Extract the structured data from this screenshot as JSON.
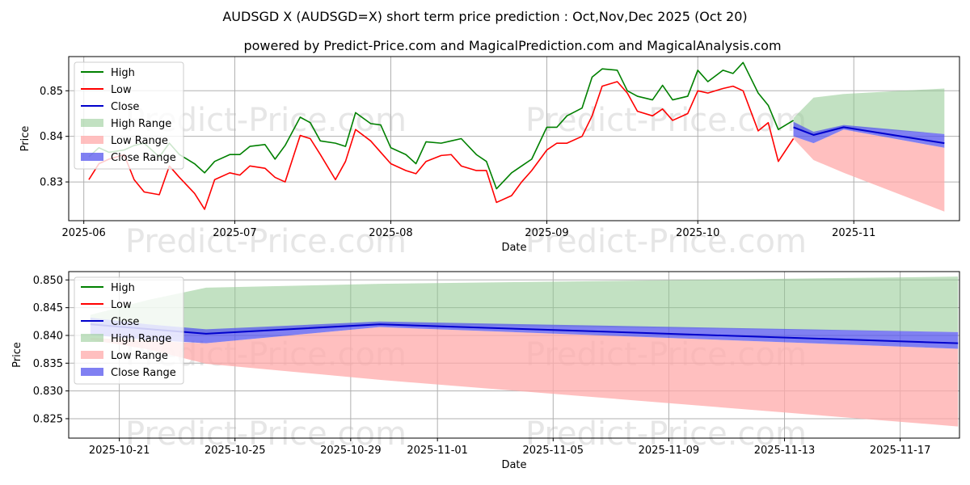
{
  "header": {
    "title": "AUDSGD X (AUDSGD=X) short term price prediction : Oct,Nov,Dec 2025 (Oct 20)",
    "subtitle": "powered by Predict-Price.com and MagicalPrediction.com and MagicalAnalysis.com"
  },
  "watermarks": [
    "Predict-Price.com",
    "Predict-Price.com",
    "Predict-Price.com",
    "Predict-Price.com",
    "Predict-Price.com",
    "Predict-Price.com",
    "Predict-Price.com",
    "Predict-Price.com"
  ],
  "colors": {
    "high": "#008000",
    "low": "#ff0000",
    "close": "#0000cc",
    "high_range": "#8fc98f",
    "low_range": "#ffaaaa",
    "close_range": "#5555ee",
    "grid": "#b0b0b0",
    "watermark": "#e6e6e6"
  },
  "chart_data": [
    {
      "type": "line",
      "title": "",
      "xlabel": "Date",
      "ylabel": "Price",
      "xlim": [
        "2025-05-29",
        "2025-11-22"
      ],
      "ylim": [
        0.8215,
        0.8575
      ],
      "x_ticks": [
        {
          "date": "2025-06-01",
          "label": "2025-06"
        },
        {
          "date": "2025-07-01",
          "label": "2025-07"
        },
        {
          "date": "2025-08-01",
          "label": "2025-08"
        },
        {
          "date": "2025-09-01",
          "label": "2025-09"
        },
        {
          "date": "2025-10-01",
          "label": "2025-10"
        },
        {
          "date": "2025-11-01",
          "label": "2025-11"
        }
      ],
      "y_ticks": [
        0.83,
        0.84,
        0.85
      ],
      "y_tick_labels": [
        "0.83",
        "0.84",
        "0.85"
      ],
      "legend": {
        "position": "upper-left",
        "entries": [
          "High",
          "Low",
          "Close",
          "High Range",
          "Low Range",
          "Close Range"
        ]
      },
      "series": [
        {
          "name": "High",
          "dates": [
            "2025-06-02",
            "2025-06-04",
            "2025-06-06",
            "2025-06-09",
            "2025-06-11",
            "2025-06-13",
            "2025-06-16",
            "2025-06-18",
            "2025-06-20",
            "2025-06-23",
            "2025-06-25",
            "2025-06-27",
            "2025-06-30",
            "2025-07-02",
            "2025-07-04",
            "2025-07-07",
            "2025-07-09",
            "2025-07-11",
            "2025-07-14",
            "2025-07-16",
            "2025-07-18",
            "2025-07-21",
            "2025-07-23",
            "2025-07-25",
            "2025-07-28",
            "2025-07-30",
            "2025-08-01",
            "2025-08-04",
            "2025-08-06",
            "2025-08-08",
            "2025-08-11",
            "2025-08-13",
            "2025-08-15",
            "2025-08-18",
            "2025-08-20",
            "2025-08-22",
            "2025-08-25",
            "2025-08-27",
            "2025-08-29",
            "2025-09-01",
            "2025-09-03",
            "2025-09-05",
            "2025-09-08",
            "2025-09-10",
            "2025-09-12",
            "2025-09-15",
            "2025-09-17",
            "2025-09-19",
            "2025-09-22",
            "2025-09-24",
            "2025-09-26",
            "2025-09-29",
            "2025-10-01",
            "2025-10-03",
            "2025-10-06",
            "2025-10-08",
            "2025-10-10",
            "2025-10-13",
            "2025-10-15",
            "2025-10-17",
            "2025-10-20"
          ],
          "values": [
            0.8355,
            0.8375,
            0.8365,
            0.837,
            0.838,
            0.8385,
            0.8355,
            0.8385,
            0.836,
            0.834,
            0.832,
            0.8345,
            0.836,
            0.836,
            0.8378,
            0.8382,
            0.835,
            0.838,
            0.8442,
            0.843,
            0.839,
            0.8385,
            0.8378,
            0.8452,
            0.8428,
            0.8425,
            0.8375,
            0.836,
            0.834,
            0.8388,
            0.8385,
            0.839,
            0.8395,
            0.836,
            0.8345,
            0.8285,
            0.832,
            0.8335,
            0.835,
            0.842,
            0.842,
            0.8445,
            0.8462,
            0.853,
            0.8548,
            0.8545,
            0.85,
            0.8488,
            0.848,
            0.8512,
            0.848,
            0.8488,
            0.8545,
            0.852,
            0.8545,
            0.8538,
            0.8562,
            0.8495,
            0.8468,
            0.8415,
            0.8435
          ]
        },
        {
          "name": "Low",
          "dates": [
            "2025-06-02",
            "2025-06-04",
            "2025-06-06",
            "2025-06-09",
            "2025-06-11",
            "2025-06-13",
            "2025-06-16",
            "2025-06-18",
            "2025-06-20",
            "2025-06-23",
            "2025-06-25",
            "2025-06-27",
            "2025-06-30",
            "2025-07-02",
            "2025-07-04",
            "2025-07-07",
            "2025-07-09",
            "2025-07-11",
            "2025-07-14",
            "2025-07-16",
            "2025-07-18",
            "2025-07-21",
            "2025-07-23",
            "2025-07-25",
            "2025-07-28",
            "2025-07-30",
            "2025-08-01",
            "2025-08-04",
            "2025-08-06",
            "2025-08-08",
            "2025-08-11",
            "2025-08-13",
            "2025-08-15",
            "2025-08-18",
            "2025-08-20",
            "2025-08-22",
            "2025-08-25",
            "2025-08-27",
            "2025-08-29",
            "2025-09-01",
            "2025-09-03",
            "2025-09-05",
            "2025-09-08",
            "2025-09-10",
            "2025-09-12",
            "2025-09-15",
            "2025-09-17",
            "2025-09-19",
            "2025-09-22",
            "2025-09-24",
            "2025-09-26",
            "2025-09-29",
            "2025-10-01",
            "2025-10-03",
            "2025-10-06",
            "2025-10-08",
            "2025-10-10",
            "2025-10-13",
            "2025-10-15",
            "2025-10-17",
            "2025-10-20"
          ],
          "values": [
            0.8305,
            0.834,
            0.835,
            0.836,
            0.8305,
            0.8278,
            0.8272,
            0.8335,
            0.831,
            0.8275,
            0.824,
            0.8305,
            0.832,
            0.8315,
            0.8335,
            0.833,
            0.831,
            0.83,
            0.8402,
            0.8395,
            0.836,
            0.8305,
            0.8345,
            0.8415,
            0.839,
            0.8365,
            0.834,
            0.8325,
            0.8318,
            0.8345,
            0.8358,
            0.836,
            0.8335,
            0.8325,
            0.8325,
            0.8255,
            0.827,
            0.83,
            0.8325,
            0.837,
            0.8385,
            0.8385,
            0.84,
            0.8445,
            0.851,
            0.852,
            0.8495,
            0.8455,
            0.8445,
            0.846,
            0.8435,
            0.845,
            0.85,
            0.8495,
            0.8505,
            0.851,
            0.85,
            0.8412,
            0.843,
            0.8345,
            0.8395
          ]
        },
        {
          "name": "Close",
          "dates": [
            "2025-10-20",
            "2025-10-24",
            "2025-10-30",
            "2025-11-19"
          ],
          "values": [
            0.842,
            0.8403,
            0.842,
            0.8385
          ]
        }
      ],
      "ranges": [
        {
          "name": "High Range",
          "dates": [
            "2025-10-20",
            "2025-10-24",
            "2025-10-30",
            "2025-11-19"
          ],
          "upper": [
            0.844,
            0.8485,
            0.8493,
            0.8505
          ],
          "lower": [
            0.842,
            0.8403,
            0.842,
            0.8405
          ]
        },
        {
          "name": "Low Range",
          "dates": [
            "2025-10-20",
            "2025-10-24",
            "2025-10-30",
            "2025-11-19"
          ],
          "upper": [
            0.84,
            0.8385,
            0.8415,
            0.8375
          ],
          "lower": [
            0.8395,
            0.8348,
            0.832,
            0.8235
          ]
        },
        {
          "name": "Close Range",
          "dates": [
            "2025-10-20",
            "2025-10-24",
            "2025-10-30",
            "2025-11-19"
          ],
          "upper": [
            0.8432,
            0.841,
            0.8425,
            0.8405
          ],
          "lower": [
            0.84,
            0.8385,
            0.8415,
            0.8375
          ]
        }
      ]
    },
    {
      "type": "line",
      "title": "",
      "xlabel": "Date",
      "ylabel": "Price",
      "xlim": [
        "2025-10-19.25",
        "2025-11-19.05"
      ],
      "ylim": [
        0.8215,
        0.8515
      ],
      "x_ticks": [
        {
          "date": "2025-10-21",
          "label": "2025-10-21"
        },
        {
          "date": "2025-10-25",
          "label": "2025-10-25"
        },
        {
          "date": "2025-10-29",
          "label": "2025-10-29"
        },
        {
          "date": "2025-11-01",
          "label": "2025-11-01"
        },
        {
          "date": "2025-11-05",
          "label": "2025-11-05"
        },
        {
          "date": "2025-11-09",
          "label": "2025-11-09"
        },
        {
          "date": "2025-11-13",
          "label": "2025-11-13"
        },
        {
          "date": "2025-11-17",
          "label": "2025-11-17"
        }
      ],
      "y_ticks": [
        0.825,
        0.83,
        0.835,
        0.84,
        0.845,
        0.85
      ],
      "y_tick_labels": [
        "0.825",
        "0.830",
        "0.835",
        "0.840",
        "0.845",
        "0.850"
      ],
      "legend": {
        "position": "upper-left",
        "entries": [
          "High",
          "Low",
          "Close",
          "High Range",
          "Low Range",
          "Close Range"
        ]
      },
      "series": [
        {
          "name": "Close",
          "dates": [
            "2025-10-20",
            "2025-10-24",
            "2025-10-30",
            "2025-11-19"
          ],
          "values": [
            0.842,
            0.8403,
            0.842,
            0.8386
          ]
        }
      ],
      "ranges": [
        {
          "name": "High Range",
          "dates": [
            "2025-10-20",
            "2025-10-22",
            "2025-10-24",
            "2025-10-30",
            "2025-11-19"
          ],
          "upper": [
            0.8437,
            0.8464,
            0.8486,
            0.8493,
            0.8506
          ],
          "lower": [
            0.842,
            0.8411,
            0.8403,
            0.842,
            0.8406
          ]
        },
        {
          "name": "Low Range",
          "dates": [
            "2025-10-20",
            "2025-10-22",
            "2025-10-24",
            "2025-10-30",
            "2025-11-19"
          ],
          "upper": [
            0.8396,
            0.839,
            0.8386,
            0.8415,
            0.8376
          ],
          "lower": [
            0.8392,
            0.8375,
            0.8349,
            0.832,
            0.8236
          ]
        },
        {
          "name": "Close Range",
          "dates": [
            "2025-10-20",
            "2025-10-22",
            "2025-10-24",
            "2025-10-30",
            "2025-11-19"
          ],
          "upper": [
            0.8432,
            0.842,
            0.8411,
            0.8425,
            0.8406
          ],
          "lower": [
            0.8401,
            0.8392,
            0.8386,
            0.8415,
            0.8376
          ]
        }
      ]
    }
  ]
}
